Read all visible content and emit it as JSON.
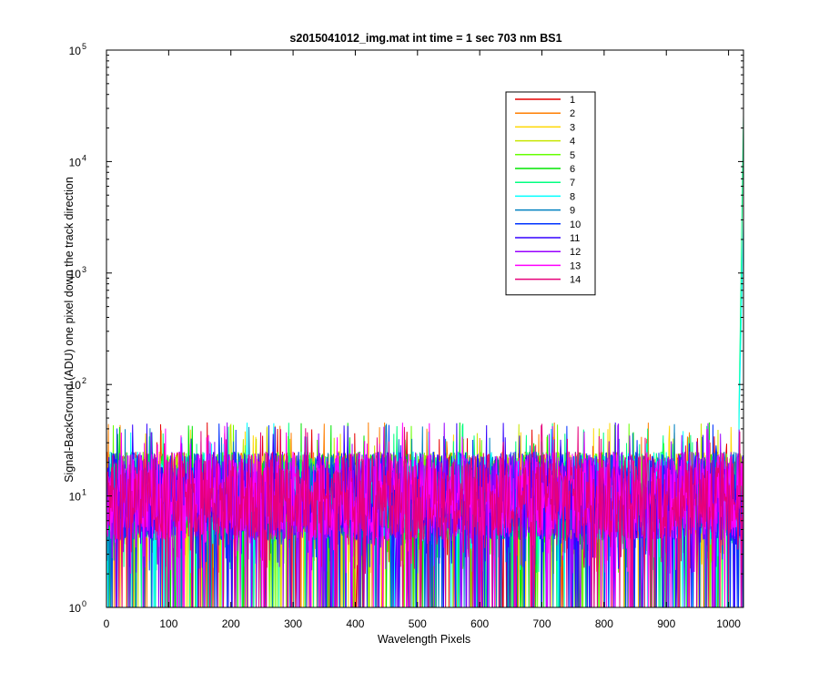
{
  "chart_data": {
    "type": "line",
    "title": "s2015041012_img.mat int time = 1 sec  703 nm BS1",
    "xlabel": "Wavelength Pixels",
    "ylabel": "Signal-BackGround (ADU) one pixel down the track direction",
    "xlim": [
      0,
      1024
    ],
    "ylim": [
      1,
      100000
    ],
    "yscale": "log",
    "grid": false,
    "legend_position": "top-right",
    "x_ticks": [
      0,
      100,
      200,
      300,
      400,
      500,
      600,
      700,
      800,
      900,
      1000
    ],
    "y_ticks": [
      {
        "base": "10",
        "exp": "0",
        "value": 1
      },
      {
        "base": "10",
        "exp": "1",
        "value": 10
      },
      {
        "base": "10",
        "exp": "2",
        "value": 100
      },
      {
        "base": "10",
        "exp": "3",
        "value": 1000
      },
      {
        "base": "10",
        "exp": "4",
        "value": 10000
      },
      {
        "base": "10",
        "exp": "5",
        "value": 100000
      }
    ],
    "noise_floor_typical": [
      4,
      25
    ],
    "noise_max": 46,
    "series": [
      {
        "name": "1",
        "color": "#e60000",
        "peak": 0
      },
      {
        "name": "2",
        "color": "#ff7f00",
        "peak": 0
      },
      {
        "name": "3",
        "color": "#ffd700",
        "peak": 0
      },
      {
        "name": "4",
        "color": "#c8e600",
        "peak": 0
      },
      {
        "name": "5",
        "color": "#66ff00",
        "peak": 0
      },
      {
        "name": "6",
        "color": "#00e600",
        "peak": 0
      },
      {
        "name": "7",
        "color": "#00ff80",
        "peak": 26000
      },
      {
        "name": "8",
        "color": "#00ffff",
        "peak": 3000
      },
      {
        "name": "9",
        "color": "#0080c0",
        "peak": 0
      },
      {
        "name": "10",
        "color": "#0033ff",
        "peak": 0
      },
      {
        "name": "11",
        "color": "#3300ff",
        "peak": 0
      },
      {
        "name": "12",
        "color": "#9900ff",
        "peak": 0
      },
      {
        "name": "13",
        "color": "#ff00ff",
        "peak": 0
      },
      {
        "name": "14",
        "color": "#e6007a",
        "peak": 0
      }
    ]
  }
}
